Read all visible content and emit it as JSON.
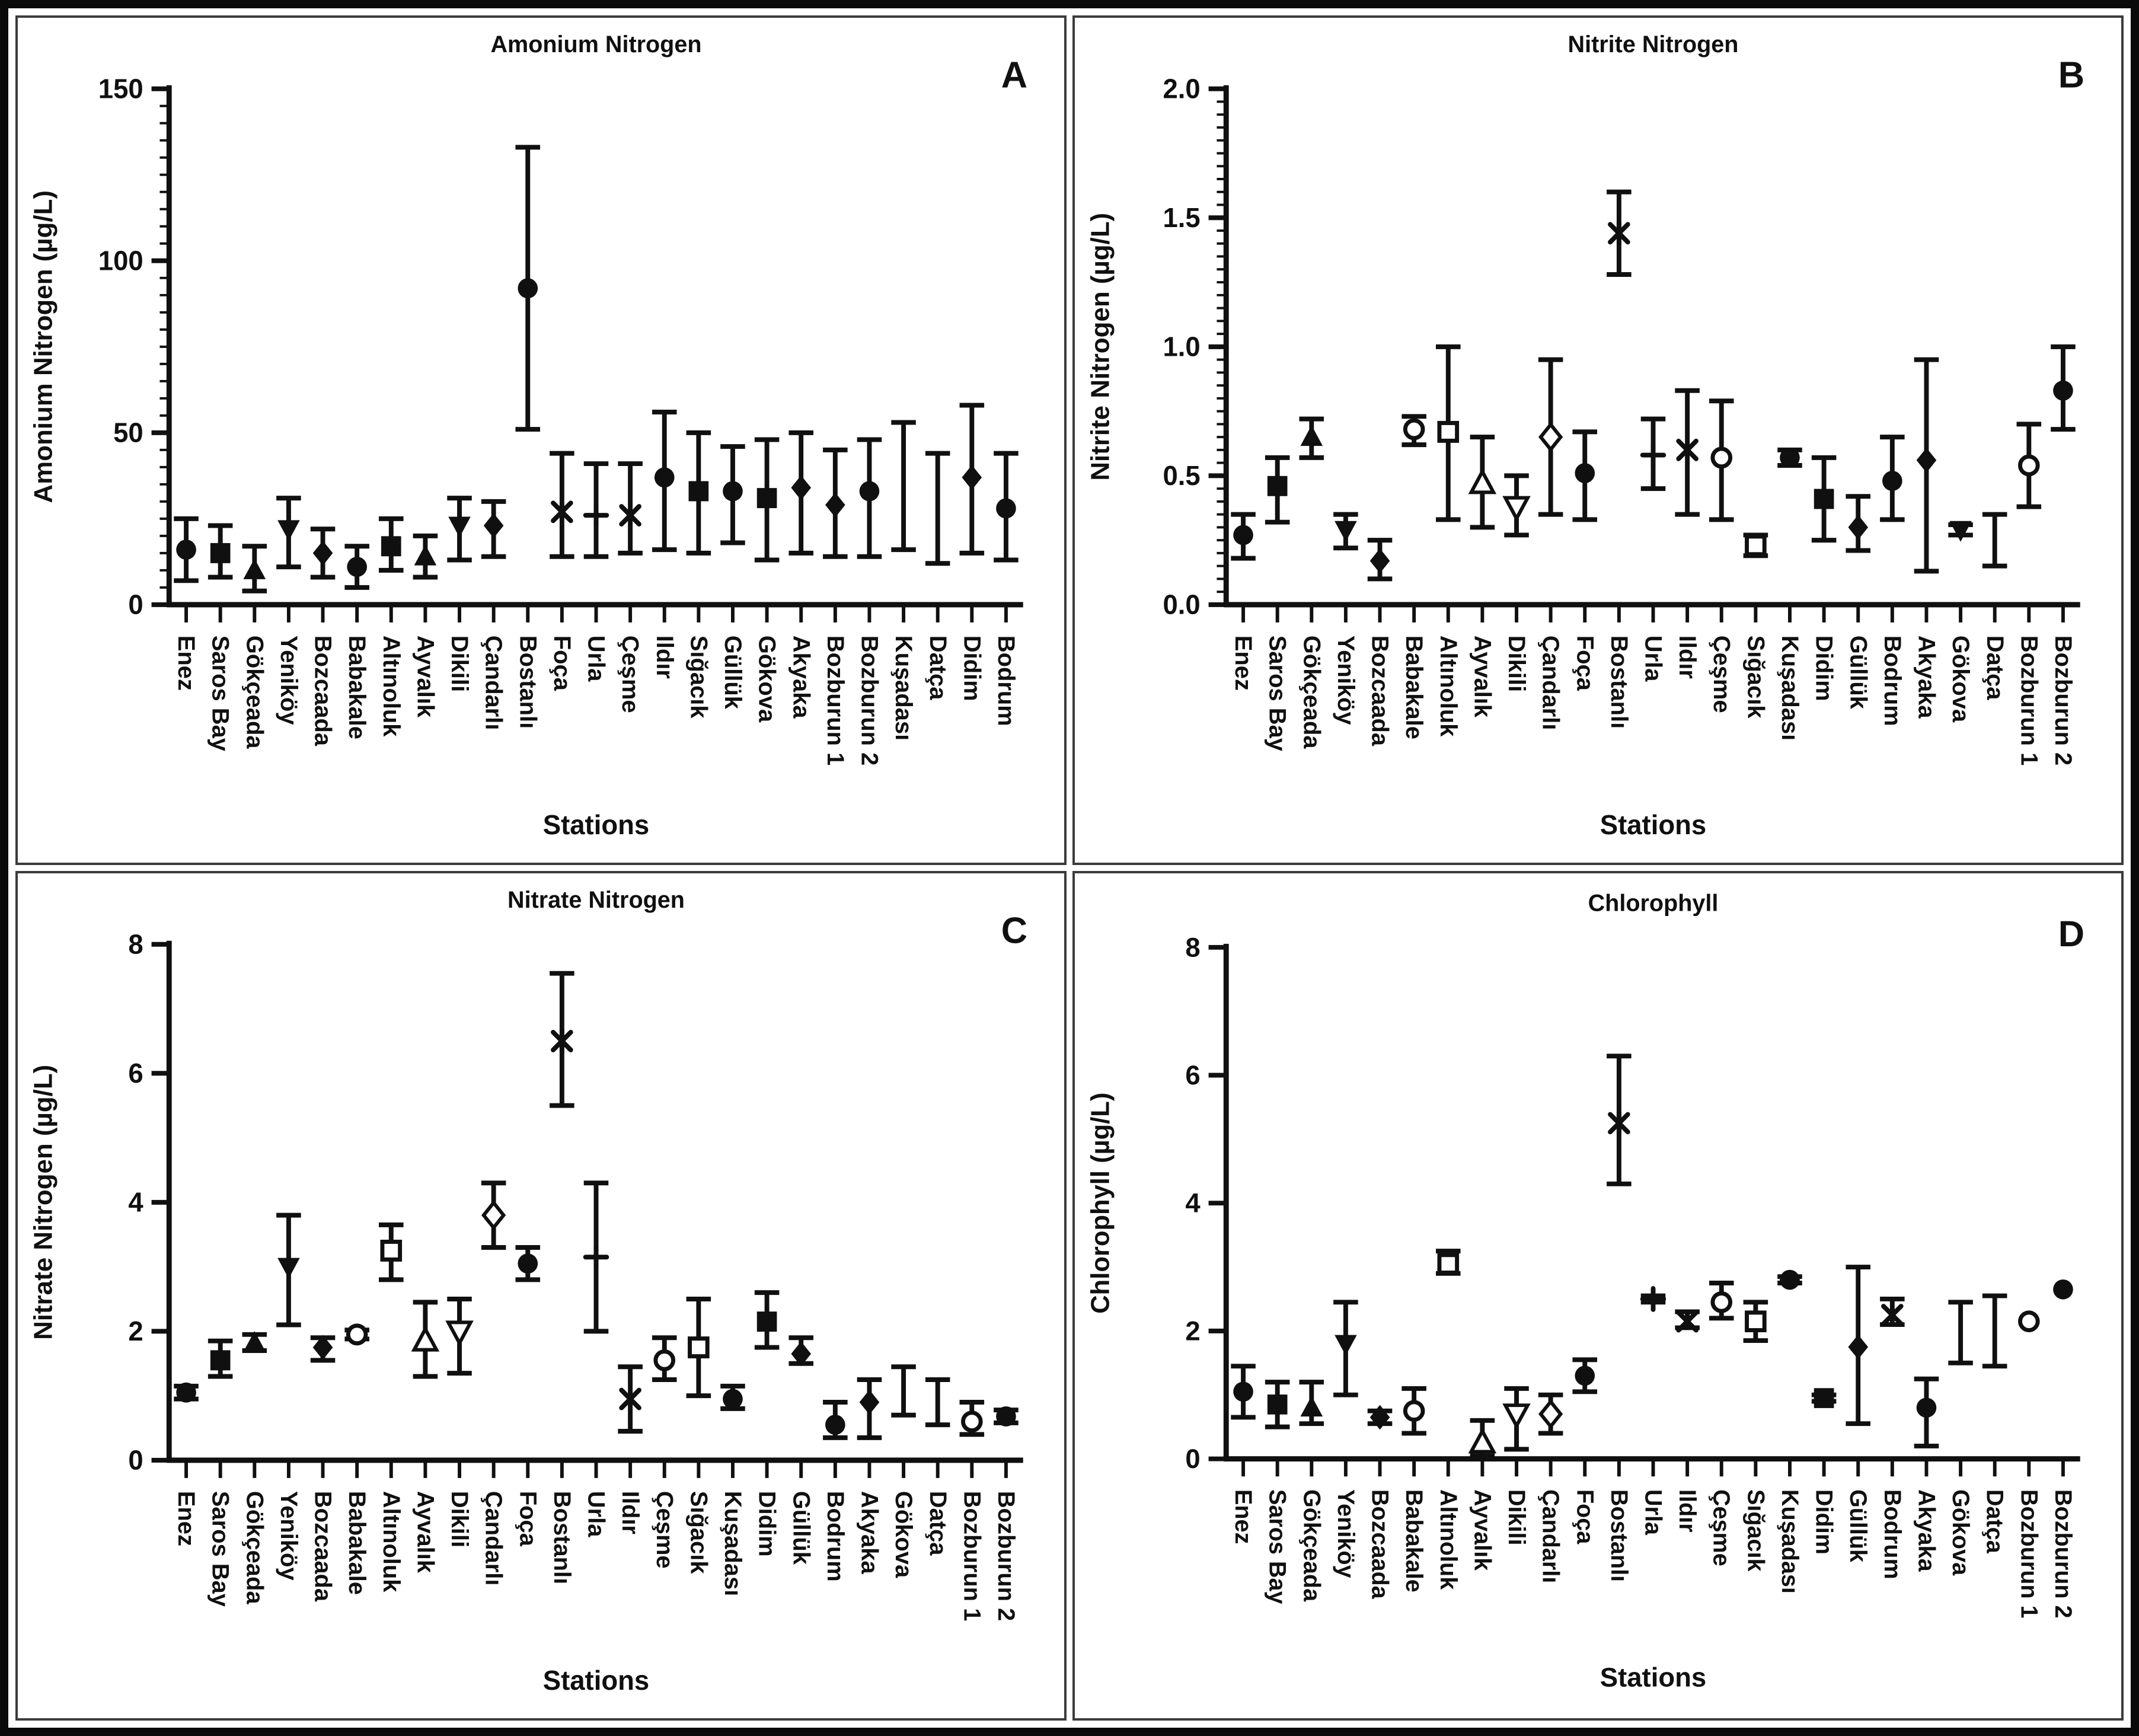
{
  "figure": {
    "description": "Four-panel station monitoring figure",
    "x_axis_title": "Stations",
    "ink_color": "#101010",
    "background_color": "#ffffff"
  },
  "chart_data": [
    {
      "type": "scatter",
      "panel": "A",
      "letter": "A",
      "title": "Amonium Nitrogen",
      "ylabel": "Amonium Nitrogen (µg/L)",
      "xlabel": "Stations",
      "ylim": [
        0,
        150
      ],
      "grid": false,
      "legend": "none",
      "yticks": [
        {
          "v": 0,
          "label": "0"
        },
        {
          "v": 50,
          "label": "50"
        },
        {
          "v": 100,
          "label": "100"
        },
        {
          "v": 150,
          "label": "150"
        }
      ],
      "minor_tick_step": 5,
      "points": [
        {
          "station": "Enez",
          "marker": "filled-circle",
          "mean": 16,
          "err_lo": 7,
          "err_hi": 25
        },
        {
          "station": "Saros Bay",
          "marker": "filled-square",
          "mean": 15,
          "err_lo": 8,
          "err_hi": 23
        },
        {
          "station": "Gökçeada",
          "marker": "filled-triangle-up",
          "mean": 10,
          "err_lo": 4,
          "err_hi": 17
        },
        {
          "station": "Yeniköy",
          "marker": "filled-triangle-down",
          "mean": 22,
          "err_lo": 11,
          "err_hi": 31
        },
        {
          "station": "Bozcaada",
          "marker": "filled-diamond",
          "mean": 15,
          "err_lo": 8,
          "err_hi": 22
        },
        {
          "station": "Babakale",
          "marker": "filled-circle",
          "mean": 11,
          "err_lo": 5,
          "err_hi": 17
        },
        {
          "station": "Altınoluk",
          "marker": "filled-square",
          "mean": 17,
          "err_lo": 10,
          "err_hi": 25
        },
        {
          "station": "Ayvalık",
          "marker": "filled-triangle-up",
          "mean": 14,
          "err_lo": 8,
          "err_hi": 20
        },
        {
          "station": "Dikili",
          "marker": "filled-triangle-down",
          "mean": 23,
          "err_lo": 13,
          "err_hi": 31
        },
        {
          "station": "Çandarlı",
          "marker": "filled-diamond",
          "mean": 23,
          "err_lo": 14,
          "err_hi": 30
        },
        {
          "station": "Bostanlı",
          "marker": "filled-circle",
          "mean": 92,
          "err_lo": 51,
          "err_hi": 133
        },
        {
          "station": "Foça",
          "marker": "x",
          "mean": 27,
          "err_lo": 14,
          "err_hi": 44
        },
        {
          "station": "Urla",
          "marker": "plus",
          "mean": 26,
          "err_lo": 14,
          "err_hi": 41
        },
        {
          "station": "Çeşme",
          "marker": "x",
          "mean": 26,
          "err_lo": 15,
          "err_hi": 41
        },
        {
          "station": "Ildır",
          "marker": "filled-circle",
          "mean": 37,
          "err_lo": 16,
          "err_hi": 56
        },
        {
          "station": "Sığacık",
          "marker": "filled-square",
          "mean": 33,
          "err_lo": 15,
          "err_hi": 50
        },
        {
          "station": "Güllük",
          "marker": "filled-circle",
          "mean": 33,
          "err_lo": 18,
          "err_hi": 46
        },
        {
          "station": "Gökova",
          "marker": "filled-square",
          "mean": 31,
          "err_lo": 13,
          "err_hi": 48
        },
        {
          "station": "Akyaka",
          "marker": "filled-diamond",
          "mean": 34,
          "err_lo": 15,
          "err_hi": 50
        },
        {
          "station": "Bozburun 1",
          "marker": "filled-diamond",
          "mean": 29,
          "err_lo": 14,
          "err_hi": 45
        },
        {
          "station": "Bozburun 2",
          "marker": "filled-circle",
          "mean": 33,
          "err_lo": 14,
          "err_hi": 48
        },
        {
          "station": "Kuşadası",
          "marker": "none",
          "mean": null,
          "err_lo": 16,
          "err_hi": 53
        },
        {
          "station": "Datça",
          "marker": "none",
          "mean": null,
          "err_lo": 12,
          "err_hi": 44
        },
        {
          "station": "Didim",
          "marker": "filled-diamond",
          "mean": 37,
          "err_lo": 15,
          "err_hi": 58
        },
        {
          "station": "Bodrum",
          "marker": "filled-circle",
          "mean": 28,
          "err_lo": 13,
          "err_hi": 44
        }
      ]
    },
    {
      "type": "scatter",
      "panel": "B",
      "letter": "B",
      "title": "Nitrite Nitrogen",
      "ylabel": "Nitrite Nitrogen (µg/L)",
      "xlabel": "Stations",
      "ylim": [
        0,
        2
      ],
      "grid": false,
      "legend": "none",
      "yticks": [
        {
          "v": 0,
          "label": "0.0"
        },
        {
          "v": 0.5,
          "label": "0.5"
        },
        {
          "v": 1,
          "label": "1.0"
        },
        {
          "v": 1.5,
          "label": "1.5"
        },
        {
          "v": 2,
          "label": "2.0"
        }
      ],
      "minor_tick_step": 0.05,
      "points": [
        {
          "station": "Enez",
          "marker": "filled-circle",
          "mean": 0.27,
          "err_lo": 0.18,
          "err_hi": 0.35
        },
        {
          "station": "Saros Bay",
          "marker": "filled-square",
          "mean": 0.46,
          "err_lo": 0.32,
          "err_hi": 0.57
        },
        {
          "station": "Gökçeada",
          "marker": "filled-triangle-up",
          "mean": 0.65,
          "err_lo": 0.57,
          "err_hi": 0.72
        },
        {
          "station": "Yeniköy",
          "marker": "filled-triangle-down",
          "mean": 0.29,
          "err_lo": 0.22,
          "err_hi": 0.35
        },
        {
          "station": "Bozcaada",
          "marker": "filled-diamond",
          "mean": 0.17,
          "err_lo": 0.1,
          "err_hi": 0.25
        },
        {
          "station": "Babakale",
          "marker": "open-circle",
          "mean": 0.68,
          "err_lo": 0.62,
          "err_hi": 0.73
        },
        {
          "station": "Altınoluk",
          "marker": "open-square",
          "mean": 0.67,
          "err_lo": 0.33,
          "err_hi": 1.0
        },
        {
          "station": "Ayvalık",
          "marker": "open-triangle-up",
          "mean": 0.47,
          "err_lo": 0.3,
          "err_hi": 0.65
        },
        {
          "station": "Dikili",
          "marker": "open-triangle-down",
          "mean": 0.38,
          "err_lo": 0.27,
          "err_hi": 0.5
        },
        {
          "station": "Çandarlı",
          "marker": "open-diamond",
          "mean": 0.65,
          "err_lo": 0.35,
          "err_hi": 0.95
        },
        {
          "station": "Foça",
          "marker": "filled-circle",
          "mean": 0.51,
          "err_lo": 0.33,
          "err_hi": 0.67
        },
        {
          "station": "Bostanlı",
          "marker": "star",
          "mean": 1.44,
          "err_lo": 1.28,
          "err_hi": 1.6
        },
        {
          "station": "Urla",
          "marker": "plus",
          "mean": 0.58,
          "err_lo": 0.45,
          "err_hi": 0.72
        },
        {
          "station": "Ildır",
          "marker": "x",
          "mean": 0.6,
          "err_lo": 0.35,
          "err_hi": 0.83
        },
        {
          "station": "Çeşme",
          "marker": "open-circle",
          "mean": 0.57,
          "err_lo": 0.33,
          "err_hi": 0.79
        },
        {
          "station": "Sığacık",
          "marker": "open-square",
          "mean": 0.23,
          "err_lo": 0.19,
          "err_hi": 0.27
        },
        {
          "station": "Kuşadası",
          "marker": "filled-circle",
          "mean": 0.57,
          "err_lo": 0.54,
          "err_hi": 0.6
        },
        {
          "station": "Didim",
          "marker": "filled-square",
          "mean": 0.41,
          "err_lo": 0.25,
          "err_hi": 0.57
        },
        {
          "station": "Güllük",
          "marker": "filled-diamond",
          "mean": 0.3,
          "err_lo": 0.21,
          "err_hi": 0.42
        },
        {
          "station": "Bodrum",
          "marker": "filled-circle",
          "mean": 0.48,
          "err_lo": 0.33,
          "err_hi": 0.65
        },
        {
          "station": "Akyaka",
          "marker": "filled-diamond",
          "mean": 0.56,
          "err_lo": 0.13,
          "err_hi": 0.95
        },
        {
          "station": "Gökova",
          "marker": "filled-triangle-down",
          "mean": 0.29,
          "err_lo": 0.27,
          "err_hi": 0.31
        },
        {
          "station": "Datça",
          "marker": "none",
          "mean": null,
          "err_lo": 0.15,
          "err_hi": 0.35
        },
        {
          "station": "Bozburun 1",
          "marker": "open-circle",
          "mean": 0.54,
          "err_lo": 0.38,
          "err_hi": 0.7
        },
        {
          "station": "Bozburun 2",
          "marker": "filled-circle",
          "mean": 0.83,
          "err_lo": 0.68,
          "err_hi": 1.0
        }
      ]
    },
    {
      "type": "scatter",
      "panel": "C",
      "letter": "C",
      "title": "Nitrate Nitrogen",
      "ylabel": "Nitrate Nitrogen (µg/L)",
      "xlabel": "Stations",
      "ylim": [
        0,
        8
      ],
      "grid": false,
      "legend": "none",
      "yticks": [
        {
          "v": 0,
          "label": "0"
        },
        {
          "v": 2,
          "label": "2"
        },
        {
          "v": 4,
          "label": "4"
        },
        {
          "v": 6,
          "label": "6"
        },
        {
          "v": 8,
          "label": "8"
        }
      ],
      "minor_tick_step": null,
      "points": [
        {
          "station": "Enez",
          "marker": "filled-circle",
          "mean": 1.05,
          "err_lo": 0.95,
          "err_hi": 1.15
        },
        {
          "station": "Saros Bay",
          "marker": "filled-square",
          "mean": 1.55,
          "err_lo": 1.3,
          "err_hi": 1.85
        },
        {
          "station": "Gökçeada",
          "marker": "filled-triangle-up",
          "mean": 1.82,
          "err_lo": 1.7,
          "err_hi": 1.95
        },
        {
          "station": "Yeniköy",
          "marker": "filled-triangle-down",
          "mean": 3.0,
          "err_lo": 2.1,
          "err_hi": 3.8
        },
        {
          "station": "Bozcaada",
          "marker": "filled-diamond",
          "mean": 1.75,
          "err_lo": 1.55,
          "err_hi": 1.9
        },
        {
          "station": "Babakale",
          "marker": "open-circle",
          "mean": 1.95,
          "err_lo": 1.88,
          "err_hi": 2.02
        },
        {
          "station": "Altınoluk",
          "marker": "open-square",
          "mean": 3.25,
          "err_lo": 2.8,
          "err_hi": 3.65
        },
        {
          "station": "Ayvalık",
          "marker": "open-triangle-up",
          "mean": 1.85,
          "err_lo": 1.3,
          "err_hi": 2.45
        },
        {
          "station": "Dikili",
          "marker": "open-triangle-down",
          "mean": 2.0,
          "err_lo": 1.35,
          "err_hi": 2.5
        },
        {
          "station": "Çandarlı",
          "marker": "open-diamond",
          "mean": 3.8,
          "err_lo": 3.3,
          "err_hi": 4.3
        },
        {
          "station": "Foça",
          "marker": "filled-circle",
          "mean": 3.05,
          "err_lo": 2.8,
          "err_hi": 3.3
        },
        {
          "station": "Bostanlı",
          "marker": "star",
          "mean": 6.5,
          "err_lo": 5.5,
          "err_hi": 7.55
        },
        {
          "station": "Urla",
          "marker": "plus",
          "mean": 3.15,
          "err_lo": 2.0,
          "err_hi": 4.3
        },
        {
          "station": "Ildır",
          "marker": "x",
          "mean": 0.95,
          "err_lo": 0.45,
          "err_hi": 1.45
        },
        {
          "station": "Çeşme",
          "marker": "open-circle",
          "mean": 1.55,
          "err_lo": 1.25,
          "err_hi": 1.9
        },
        {
          "station": "Sığacık",
          "marker": "open-square",
          "mean": 1.75,
          "err_lo": 1.0,
          "err_hi": 2.5
        },
        {
          "station": "Kuşadası",
          "marker": "filled-circle",
          "mean": 0.95,
          "err_lo": 0.8,
          "err_hi": 1.15
        },
        {
          "station": "Didim",
          "marker": "filled-square",
          "mean": 2.15,
          "err_lo": 1.75,
          "err_hi": 2.6
        },
        {
          "station": "Güllük",
          "marker": "filled-diamond",
          "mean": 1.65,
          "err_lo": 1.5,
          "err_hi": 1.9
        },
        {
          "station": "Bodrum",
          "marker": "filled-circle",
          "mean": 0.55,
          "err_lo": 0.35,
          "err_hi": 0.9
        },
        {
          "station": "Akyaka",
          "marker": "filled-diamond",
          "mean": 0.9,
          "err_lo": 0.35,
          "err_hi": 1.25
        },
        {
          "station": "Gökova",
          "marker": "none",
          "mean": null,
          "err_lo": 0.7,
          "err_hi": 1.45
        },
        {
          "station": "Datça",
          "marker": "none",
          "mean": null,
          "err_lo": 0.55,
          "err_hi": 1.25
        },
        {
          "station": "Bozburun 1",
          "marker": "open-circle",
          "mean": 0.6,
          "err_lo": 0.4,
          "err_hi": 0.9
        },
        {
          "station": "Bozburun 2",
          "marker": "filled-circle",
          "mean": 0.68,
          "err_lo": 0.58,
          "err_hi": 0.78
        }
      ]
    },
    {
      "type": "scatter",
      "panel": "D",
      "letter": "D",
      "title": "Chlorophyll",
      "ylabel": "Chlorophyll (µg/L)",
      "xlabel": "Stations",
      "ylim": [
        0,
        8
      ],
      "grid": false,
      "legend": "none",
      "yticks": [
        {
          "v": 0,
          "label": "0"
        },
        {
          "v": 2,
          "label": "2"
        },
        {
          "v": 4,
          "label": "4"
        },
        {
          "v": 6,
          "label": "6"
        },
        {
          "v": 8,
          "label": "8"
        }
      ],
      "minor_tick_step": null,
      "points": [
        {
          "station": "Enez",
          "marker": "filled-circle",
          "mean": 1.05,
          "err_lo": 0.65,
          "err_hi": 1.45
        },
        {
          "station": "Saros Bay",
          "marker": "filled-square",
          "mean": 0.85,
          "err_lo": 0.5,
          "err_hi": 1.2
        },
        {
          "station": "Gökçeada",
          "marker": "filled-triangle-up",
          "mean": 0.8,
          "err_lo": 0.55,
          "err_hi": 1.2
        },
        {
          "station": "Yeniköy",
          "marker": "filled-triangle-down",
          "mean": 1.8,
          "err_lo": 1.0,
          "err_hi": 2.45
        },
        {
          "station": "Bozcaada",
          "marker": "filled-diamond",
          "mean": 0.65,
          "err_lo": 0.55,
          "err_hi": 0.75
        },
        {
          "station": "Babakale",
          "marker": "open-circle",
          "mean": 0.75,
          "err_lo": 0.4,
          "err_hi": 1.1
        },
        {
          "station": "Altınoluk",
          "marker": "open-square",
          "mean": 3.05,
          "err_lo": 2.9,
          "err_hi": 3.25
        },
        {
          "station": "Ayvalık",
          "marker": "open-triangle-up",
          "mean": 0.25,
          "err_lo": 0.05,
          "err_hi": 0.6
        },
        {
          "station": "Dikili",
          "marker": "open-triangle-down",
          "mean": 0.7,
          "err_lo": 0.15,
          "err_hi": 1.1
        },
        {
          "station": "Çandarlı",
          "marker": "open-diamond",
          "mean": 0.7,
          "err_lo": 0.4,
          "err_hi": 1.0
        },
        {
          "station": "Foça",
          "marker": "filled-circle",
          "mean": 1.3,
          "err_lo": 1.05,
          "err_hi": 1.55
        },
        {
          "station": "Bostanlı",
          "marker": "star",
          "mean": 5.25,
          "err_lo": 4.3,
          "err_hi": 6.3
        },
        {
          "station": "Urla",
          "marker": "plus",
          "mean": 2.5,
          "err_lo": 2.45,
          "err_hi": 2.55
        },
        {
          "station": "Ildır",
          "marker": "x",
          "mean": 2.15,
          "err_lo": 2.05,
          "err_hi": 2.3
        },
        {
          "station": "Çeşme",
          "marker": "open-circle",
          "mean": 2.45,
          "err_lo": 2.2,
          "err_hi": 2.75
        },
        {
          "station": "Sığacık",
          "marker": "open-square",
          "mean": 2.15,
          "err_lo": 1.85,
          "err_hi": 2.45
        },
        {
          "station": "Kuşadası",
          "marker": "filled-circle",
          "mean": 2.8,
          "err_lo": 2.75,
          "err_hi": 2.85
        },
        {
          "station": "Didim",
          "marker": "filled-square",
          "mean": 0.95,
          "err_lo": 0.9,
          "err_hi": 1.0
        },
        {
          "station": "Güllük",
          "marker": "filled-diamond",
          "mean": 1.75,
          "err_lo": 0.55,
          "err_hi": 3.0
        },
        {
          "station": "Bodrum",
          "marker": "x",
          "mean": 2.25,
          "err_lo": 2.1,
          "err_hi": 2.5
        },
        {
          "station": "Akyaka",
          "marker": "filled-circle",
          "mean": 0.8,
          "err_lo": 0.2,
          "err_hi": 1.25
        },
        {
          "station": "Gökova",
          "marker": "none",
          "mean": null,
          "err_lo": 1.5,
          "err_hi": 2.45
        },
        {
          "station": "Datça",
          "marker": "none",
          "mean": null,
          "err_lo": 1.45,
          "err_hi": 2.55
        },
        {
          "station": "Bozburun 1",
          "marker": "open-circle",
          "mean": 2.15,
          "err_lo": 2.15,
          "err_hi": 2.15
        },
        {
          "station": "Bozburun 2",
          "marker": "filled-circle",
          "mean": 2.65,
          "err_lo": 2.65,
          "err_hi": 2.65
        }
      ]
    }
  ]
}
